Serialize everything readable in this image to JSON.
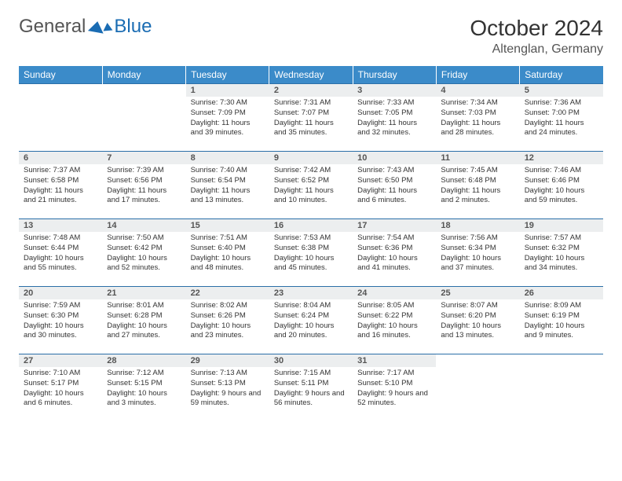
{
  "brand": {
    "part1": "General",
    "part2": "Blue"
  },
  "title": "October 2024",
  "location": "Altenglan, Germany",
  "colors": {
    "header_bg": "#3b8bc9",
    "header_text": "#ffffff",
    "row_border": "#2b6fa8",
    "daynum_bg": "#eceeef",
    "text": "#333333",
    "brand_blue": "#1a6cb3"
  },
  "weekdays": [
    "Sunday",
    "Monday",
    "Tuesday",
    "Wednesday",
    "Thursday",
    "Friday",
    "Saturday"
  ],
  "weeks": [
    [
      {
        "empty": true
      },
      {
        "empty": true
      },
      {
        "n": "1",
        "sr": "Sunrise: 7:30 AM",
        "ss": "Sunset: 7:09 PM",
        "dl": "Daylight: 11 hours and 39 minutes."
      },
      {
        "n": "2",
        "sr": "Sunrise: 7:31 AM",
        "ss": "Sunset: 7:07 PM",
        "dl": "Daylight: 11 hours and 35 minutes."
      },
      {
        "n": "3",
        "sr": "Sunrise: 7:33 AM",
        "ss": "Sunset: 7:05 PM",
        "dl": "Daylight: 11 hours and 32 minutes."
      },
      {
        "n": "4",
        "sr": "Sunrise: 7:34 AM",
        "ss": "Sunset: 7:03 PM",
        "dl": "Daylight: 11 hours and 28 minutes."
      },
      {
        "n": "5",
        "sr": "Sunrise: 7:36 AM",
        "ss": "Sunset: 7:00 PM",
        "dl": "Daylight: 11 hours and 24 minutes."
      }
    ],
    [
      {
        "n": "6",
        "sr": "Sunrise: 7:37 AM",
        "ss": "Sunset: 6:58 PM",
        "dl": "Daylight: 11 hours and 21 minutes."
      },
      {
        "n": "7",
        "sr": "Sunrise: 7:39 AM",
        "ss": "Sunset: 6:56 PM",
        "dl": "Daylight: 11 hours and 17 minutes."
      },
      {
        "n": "8",
        "sr": "Sunrise: 7:40 AM",
        "ss": "Sunset: 6:54 PM",
        "dl": "Daylight: 11 hours and 13 minutes."
      },
      {
        "n": "9",
        "sr": "Sunrise: 7:42 AM",
        "ss": "Sunset: 6:52 PM",
        "dl": "Daylight: 11 hours and 10 minutes."
      },
      {
        "n": "10",
        "sr": "Sunrise: 7:43 AM",
        "ss": "Sunset: 6:50 PM",
        "dl": "Daylight: 11 hours and 6 minutes."
      },
      {
        "n": "11",
        "sr": "Sunrise: 7:45 AM",
        "ss": "Sunset: 6:48 PM",
        "dl": "Daylight: 11 hours and 2 minutes."
      },
      {
        "n": "12",
        "sr": "Sunrise: 7:46 AM",
        "ss": "Sunset: 6:46 PM",
        "dl": "Daylight: 10 hours and 59 minutes."
      }
    ],
    [
      {
        "n": "13",
        "sr": "Sunrise: 7:48 AM",
        "ss": "Sunset: 6:44 PM",
        "dl": "Daylight: 10 hours and 55 minutes."
      },
      {
        "n": "14",
        "sr": "Sunrise: 7:50 AM",
        "ss": "Sunset: 6:42 PM",
        "dl": "Daylight: 10 hours and 52 minutes."
      },
      {
        "n": "15",
        "sr": "Sunrise: 7:51 AM",
        "ss": "Sunset: 6:40 PM",
        "dl": "Daylight: 10 hours and 48 minutes."
      },
      {
        "n": "16",
        "sr": "Sunrise: 7:53 AM",
        "ss": "Sunset: 6:38 PM",
        "dl": "Daylight: 10 hours and 45 minutes."
      },
      {
        "n": "17",
        "sr": "Sunrise: 7:54 AM",
        "ss": "Sunset: 6:36 PM",
        "dl": "Daylight: 10 hours and 41 minutes."
      },
      {
        "n": "18",
        "sr": "Sunrise: 7:56 AM",
        "ss": "Sunset: 6:34 PM",
        "dl": "Daylight: 10 hours and 37 minutes."
      },
      {
        "n": "19",
        "sr": "Sunrise: 7:57 AM",
        "ss": "Sunset: 6:32 PM",
        "dl": "Daylight: 10 hours and 34 minutes."
      }
    ],
    [
      {
        "n": "20",
        "sr": "Sunrise: 7:59 AM",
        "ss": "Sunset: 6:30 PM",
        "dl": "Daylight: 10 hours and 30 minutes."
      },
      {
        "n": "21",
        "sr": "Sunrise: 8:01 AM",
        "ss": "Sunset: 6:28 PM",
        "dl": "Daylight: 10 hours and 27 minutes."
      },
      {
        "n": "22",
        "sr": "Sunrise: 8:02 AM",
        "ss": "Sunset: 6:26 PM",
        "dl": "Daylight: 10 hours and 23 minutes."
      },
      {
        "n": "23",
        "sr": "Sunrise: 8:04 AM",
        "ss": "Sunset: 6:24 PM",
        "dl": "Daylight: 10 hours and 20 minutes."
      },
      {
        "n": "24",
        "sr": "Sunrise: 8:05 AM",
        "ss": "Sunset: 6:22 PM",
        "dl": "Daylight: 10 hours and 16 minutes."
      },
      {
        "n": "25",
        "sr": "Sunrise: 8:07 AM",
        "ss": "Sunset: 6:20 PM",
        "dl": "Daylight: 10 hours and 13 minutes."
      },
      {
        "n": "26",
        "sr": "Sunrise: 8:09 AM",
        "ss": "Sunset: 6:19 PM",
        "dl": "Daylight: 10 hours and 9 minutes."
      }
    ],
    [
      {
        "n": "27",
        "sr": "Sunrise: 7:10 AM",
        "ss": "Sunset: 5:17 PM",
        "dl": "Daylight: 10 hours and 6 minutes."
      },
      {
        "n": "28",
        "sr": "Sunrise: 7:12 AM",
        "ss": "Sunset: 5:15 PM",
        "dl": "Daylight: 10 hours and 3 minutes."
      },
      {
        "n": "29",
        "sr": "Sunrise: 7:13 AM",
        "ss": "Sunset: 5:13 PM",
        "dl": "Daylight: 9 hours and 59 minutes."
      },
      {
        "n": "30",
        "sr": "Sunrise: 7:15 AM",
        "ss": "Sunset: 5:11 PM",
        "dl": "Daylight: 9 hours and 56 minutes."
      },
      {
        "n": "31",
        "sr": "Sunrise: 7:17 AM",
        "ss": "Sunset: 5:10 PM",
        "dl": "Daylight: 9 hours and 52 minutes."
      },
      {
        "empty": true
      },
      {
        "empty": true
      }
    ]
  ]
}
